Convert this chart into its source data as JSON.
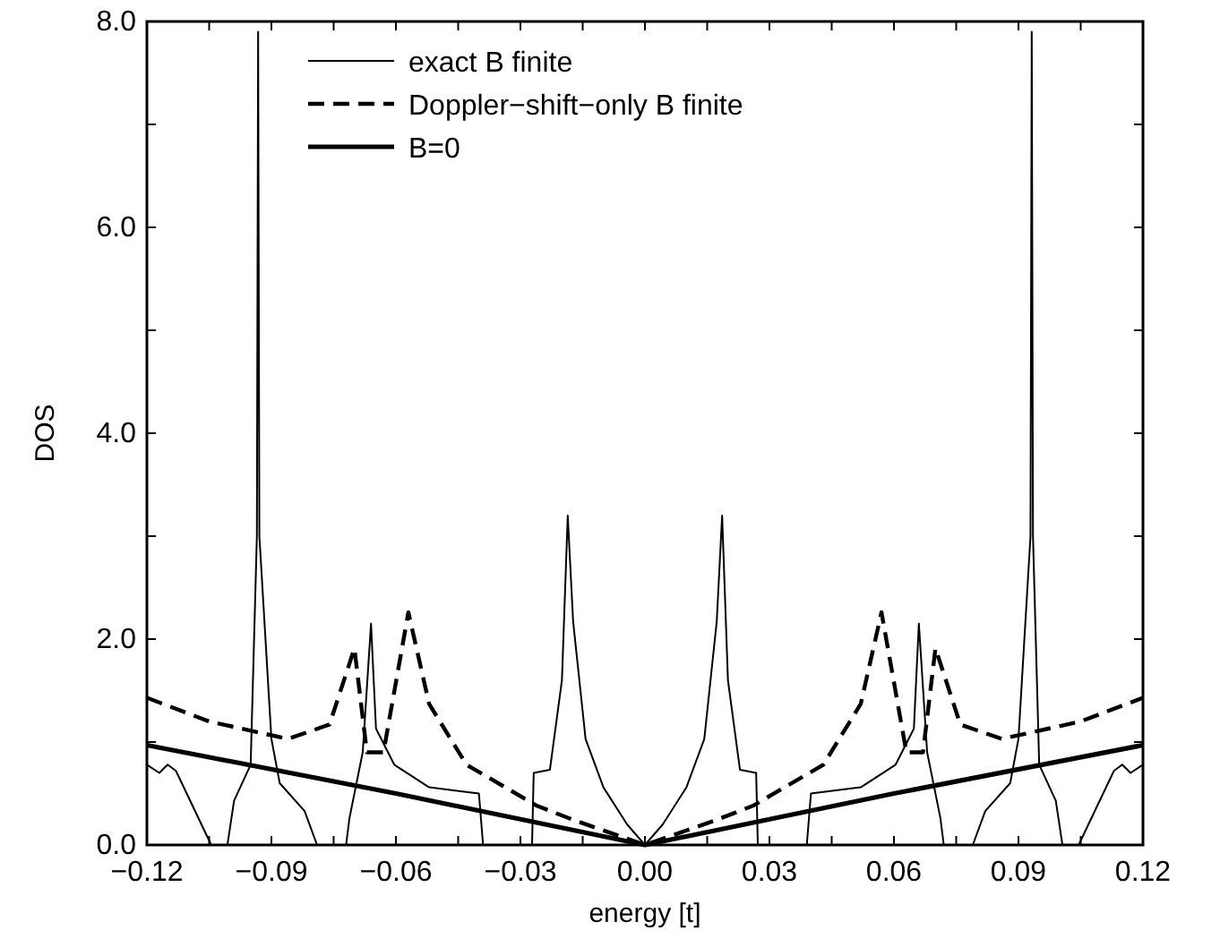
{
  "chart_data": {
    "type": "line",
    "xlabel": "energy [t]",
    "ylabel": "DOS",
    "xlim": [
      -0.12,
      0.12
    ],
    "ylim": [
      0,
      8
    ],
    "xticks": [
      {
        "value": -0.12,
        "label": "−0.12"
      },
      {
        "value": -0.105,
        "label": null
      },
      {
        "value": -0.09,
        "label": "−0.09"
      },
      {
        "value": -0.075,
        "label": null
      },
      {
        "value": -0.06,
        "label": "−0.06"
      },
      {
        "value": -0.045,
        "label": null
      },
      {
        "value": -0.03,
        "label": "−0.03"
      },
      {
        "value": -0.015,
        "label": null
      },
      {
        "value": 0,
        "label": "0.00"
      },
      {
        "value": 0.015,
        "label": null
      },
      {
        "value": 0.03,
        "label": "0.03"
      },
      {
        "value": 0.045,
        "label": null
      },
      {
        "value": 0.06,
        "label": "0.06"
      },
      {
        "value": 0.075,
        "label": null
      },
      {
        "value": 0.09,
        "label": "0.09"
      },
      {
        "value": 0.105,
        "label": null
      },
      {
        "value": 0.12,
        "label": "0.12"
      }
    ],
    "yticks": [
      {
        "value": 0,
        "label": "0.0"
      },
      {
        "value": 1,
        "label": null
      },
      {
        "value": 2,
        "label": "2.0"
      },
      {
        "value": 3,
        "label": null
      },
      {
        "value": 4,
        "label": "4.0"
      },
      {
        "value": 5,
        "label": null
      },
      {
        "value": 6,
        "label": "6.0"
      },
      {
        "value": 7,
        "label": null
      },
      {
        "value": 8,
        "label": "8.0"
      }
    ],
    "legend": "top left",
    "marker": "none",
    "grid": false,
    "series": [
      {
        "name": "exact B finite",
        "color": "#000000",
        "line_style": "solid",
        "x": [
          -0.12,
          -0.117,
          -0.115,
          -0.113,
          -0.1045,
          -0.1006,
          -0.099,
          -0.095,
          -0.0935,
          -0.0932,
          -0.0929,
          -0.09,
          -0.088,
          -0.082,
          -0.079,
          -0.072,
          -0.0712,
          -0.068,
          -0.066,
          -0.0648,
          -0.0604,
          -0.052,
          -0.04,
          -0.039,
          -0.0272,
          -0.0268,
          -0.0229,
          -0.02,
          -0.0186,
          -0.0173,
          -0.0143,
          -0.01,
          -0.0043,
          0,
          0.0043,
          0.01,
          0.0143,
          0.0173,
          0.0186,
          0.02,
          0.0229,
          0.0268,
          0.0272,
          0.039,
          0.04,
          0.052,
          0.0604,
          0.0648,
          0.066,
          0.068,
          0.0712,
          0.072,
          0.079,
          0.082,
          0.088,
          0.09,
          0.0929,
          0.0932,
          0.0935,
          0.095,
          0.099,
          0.1006,
          0.1045,
          0.113,
          0.115,
          0.117,
          0.12
        ],
        "values": [
          0.78,
          0.7,
          0.78,
          0.72,
          0,
          0,
          0.43,
          0.78,
          3.0,
          7.9,
          3.0,
          1.03,
          0.6,
          0.33,
          0,
          0,
          0.26,
          0.9,
          2.15,
          1.13,
          0.78,
          0.56,
          0.5,
          0,
          0,
          0.7,
          0.73,
          1.6,
          3.2,
          2.17,
          1.03,
          0.56,
          0.2,
          0,
          0.2,
          0.56,
          1.03,
          2.17,
          3.2,
          1.6,
          0.73,
          0.7,
          0,
          0,
          0.5,
          0.56,
          0.78,
          1.13,
          2.15,
          0.9,
          0.26,
          0,
          0,
          0.33,
          0.6,
          1.03,
          3.0,
          7.9,
          3.0,
          0.78,
          0.43,
          0,
          0,
          0.72,
          0.78,
          0.7,
          0.78
        ]
      },
      {
        "name": "Doppler−shift−only B finite",
        "color": "#000000",
        "line_style": "dashed",
        "x": [
          -0.12,
          -0.105,
          -0.086,
          -0.076,
          -0.07,
          -0.067,
          -0.063,
          -0.057,
          -0.052,
          -0.043,
          -0.026,
          -0.017,
          0,
          0.017,
          0.026,
          0.043,
          0.052,
          0.057,
          0.063,
          0.067,
          0.07,
          0.076,
          0.086,
          0.105,
          0.12
        ],
        "values": [
          1.43,
          1.2,
          1.03,
          1.17,
          1.91,
          0.9,
          0.9,
          2.26,
          1.37,
          0.78,
          0.38,
          0.24,
          0,
          0.24,
          0.38,
          0.78,
          1.37,
          2.26,
          0.9,
          0.9,
          1.91,
          1.17,
          1.03,
          1.2,
          1.43
        ]
      },
      {
        "name": "B=0",
        "color": "#000000",
        "line_style": "solid",
        "x": [
          -0.12,
          -0.06,
          0,
          0.06,
          0.12
        ],
        "values": [
          0.97,
          0.5,
          0,
          0.5,
          0.97
        ]
      }
    ]
  }
}
